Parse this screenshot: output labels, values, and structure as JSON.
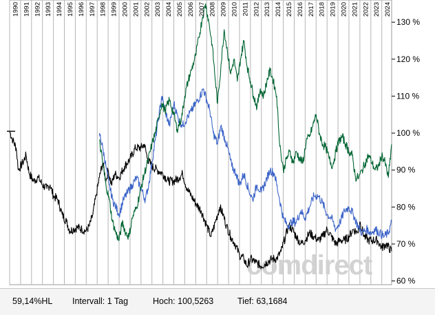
{
  "chart_data": {
    "type": "line",
    "x_label_years": [
      "1990",
      "1991",
      "1992",
      "1993",
      "1994",
      "1995",
      "1996",
      "1997",
      "1998",
      "1999",
      "2000",
      "2001",
      "2002",
      "2003",
      "2004",
      "2005",
      "2006",
      "2007",
      "2008",
      "2009",
      "2010",
      "2011",
      "2012",
      "2013",
      "2014",
      "2015",
      "2016",
      "2017",
      "2018",
      "2019",
      "2020",
      "2021",
      "2022",
      "2023",
      "2024"
    ],
    "y_ticks": [
      "60 %",
      "70 %",
      "80 %",
      "90 %",
      "100 %",
      "110 %",
      "120 %",
      "130 %"
    ],
    "ylim": [
      59,
      136
    ],
    "xlim": [
      1990.0,
      2024.9
    ],
    "axis_position": "right",
    "grid": true,
    "series": [
      {
        "color": "#000000",
        "points": [
          [
            1990.0,
            100.5
          ],
          [
            1990.3,
            98
          ],
          [
            1990.6,
            96
          ],
          [
            1990.8,
            90
          ],
          [
            1991.2,
            92
          ],
          [
            1991.5,
            94
          ],
          [
            1991.8,
            89
          ],
          [
            1992.2,
            87
          ],
          [
            1992.6,
            88
          ],
          [
            1993.0,
            86
          ],
          [
            1993.4,
            85
          ],
          [
            1993.7,
            86
          ],
          [
            1994.0,
            83
          ],
          [
            1994.4,
            82
          ],
          [
            1994.8,
            78
          ],
          [
            1995.2,
            76
          ],
          [
            1995.5,
            73.5
          ],
          [
            1995.8,
            74
          ],
          [
            1996.2,
            74.5
          ],
          [
            1996.6,
            74
          ],
          [
            1997.0,
            73.5
          ],
          [
            1997.3,
            75
          ],
          [
            1997.6,
            78
          ],
          [
            1997.9,
            83
          ],
          [
            1998.2,
            88
          ],
          [
            1998.5,
            92
          ],
          [
            1998.8,
            87
          ],
          [
            1999.0,
            90
          ],
          [
            1999.3,
            86
          ],
          [
            1999.6,
            89
          ],
          [
            2000.0,
            88
          ],
          [
            2000.5,
            91
          ],
          [
            2001.0,
            93
          ],
          [
            2001.5,
            96
          ],
          [
            2002.0,
            96
          ],
          [
            2002.3,
            97
          ],
          [
            2002.6,
            93
          ],
          [
            2003.0,
            91
          ],
          [
            2003.5,
            90
          ],
          [
            2004.0,
            89
          ],
          [
            2004.5,
            87
          ],
          [
            2005.0,
            87
          ],
          [
            2005.5,
            88
          ],
          [
            2005.8,
            89
          ],
          [
            2006.2,
            85
          ],
          [
            2006.6,
            83
          ],
          [
            2007.0,
            81
          ],
          [
            2007.5,
            79
          ],
          [
            2008.0,
            75
          ],
          [
            2008.4,
            72
          ],
          [
            2008.8,
            76
          ],
          [
            2009.2,
            80
          ],
          [
            2009.5,
            78
          ],
          [
            2009.8,
            75
          ],
          [
            2010.2,
            72
          ],
          [
            2010.6,
            70
          ],
          [
            2011.0,
            67
          ],
          [
            2011.4,
            66
          ],
          [
            2011.7,
            64
          ],
          [
            2012.0,
            66
          ],
          [
            2012.5,
            65
          ],
          [
            2013.0,
            64
          ],
          [
            2013.5,
            65
          ],
          [
            2014.0,
            66
          ],
          [
            2014.4,
            66
          ],
          [
            2014.8,
            68
          ],
          [
            2015.2,
            72
          ],
          [
            2015.5,
            75
          ],
          [
            2015.8,
            74
          ],
          [
            2016.2,
            72
          ],
          [
            2016.6,
            70
          ],
          [
            2017.0,
            71
          ],
          [
            2017.4,
            73
          ],
          [
            2017.8,
            72
          ],
          [
            2018.2,
            71
          ],
          [
            2018.6,
            72
          ],
          [
            2019.0,
            74
          ],
          [
            2019.4,
            72
          ],
          [
            2019.8,
            70
          ],
          [
            2020.2,
            71
          ],
          [
            2020.6,
            71
          ],
          [
            2021.0,
            72
          ],
          [
            2021.4,
            74
          ],
          [
            2021.8,
            73
          ],
          [
            2022.0,
            76
          ],
          [
            2022.4,
            72
          ],
          [
            2022.8,
            71
          ],
          [
            2023.2,
            71
          ],
          [
            2023.6,
            71
          ],
          [
            2024.0,
            69
          ],
          [
            2024.4,
            70
          ],
          [
            2024.9,
            68
          ]
        ]
      },
      {
        "color": "#3c64c8",
        "points": [
          [
            1998.2,
            100
          ],
          [
            1998.5,
            96
          ],
          [
            1998.8,
            91
          ],
          [
            1999.1,
            86
          ],
          [
            1999.4,
            82
          ],
          [
            1999.7,
            80
          ],
          [
            2000.0,
            78
          ],
          [
            2000.4,
            82
          ],
          [
            2000.8,
            84
          ],
          [
            2001.2,
            86
          ],
          [
            2001.6,
            88
          ],
          [
            2002.0,
            85
          ],
          [
            2002.4,
            82
          ],
          [
            2002.7,
            86
          ],
          [
            2003.0,
            92
          ],
          [
            2003.3,
            98
          ],
          [
            2003.6,
            104
          ],
          [
            2003.9,
            110
          ],
          [
            2004.2,
            106
          ],
          [
            2004.6,
            102
          ],
          [
            2005.0,
            108
          ],
          [
            2005.4,
            104
          ],
          [
            2005.8,
            102
          ],
          [
            2006.2,
            104
          ],
          [
            2006.6,
            106
          ],
          [
            2007.0,
            108
          ],
          [
            2007.4,
            110
          ],
          [
            2007.7,
            112
          ],
          [
            2008.0,
            109
          ],
          [
            2008.3,
            106
          ],
          [
            2008.6,
            100
          ],
          [
            2009.0,
            97
          ],
          [
            2009.3,
            102
          ],
          [
            2009.7,
            98
          ],
          [
            2010.0,
            95
          ],
          [
            2010.3,
            91
          ],
          [
            2010.7,
            89
          ],
          [
            2011.0,
            86
          ],
          [
            2011.4,
            89
          ],
          [
            2011.8,
            85
          ],
          [
            2012.2,
            82
          ],
          [
            2012.6,
            86
          ],
          [
            2013.0,
            84
          ],
          [
            2013.4,
            87
          ],
          [
            2013.8,
            90
          ],
          [
            2014.2,
            89
          ],
          [
            2014.6,
            83
          ],
          [
            2015.0,
            77
          ],
          [
            2015.4,
            75
          ],
          [
            2015.8,
            76
          ],
          [
            2016.2,
            76
          ],
          [
            2016.6,
            79
          ],
          [
            2017.0,
            77
          ],
          [
            2017.4,
            80
          ],
          [
            2017.8,
            83
          ],
          [
            2018.2,
            83
          ],
          [
            2018.6,
            81
          ],
          [
            2019.0,
            78
          ],
          [
            2019.4,
            77
          ],
          [
            2019.8,
            74
          ],
          [
            2020.2,
            76
          ],
          [
            2020.6,
            79
          ],
          [
            2021.0,
            80
          ],
          [
            2021.4,
            78
          ],
          [
            2021.8,
            75
          ],
          [
            2022.2,
            73
          ],
          [
            2022.6,
            74
          ],
          [
            2023.0,
            73
          ],
          [
            2023.4,
            74
          ],
          [
            2023.8,
            73
          ],
          [
            2024.2,
            72
          ],
          [
            2024.6,
            73
          ],
          [
            2024.9,
            76
          ]
        ]
      },
      {
        "color": "#006432",
        "points": [
          [
            1998.2,
            98
          ],
          [
            1998.5,
            92
          ],
          [
            1998.8,
            86
          ],
          [
            1999.1,
            82
          ],
          [
            1999.4,
            76
          ],
          [
            1999.7,
            73
          ],
          [
            2000.0,
            71
          ],
          [
            2000.3,
            76
          ],
          [
            2000.6,
            73
          ],
          [
            2000.9,
            72
          ],
          [
            2001.2,
            77
          ],
          [
            2001.6,
            80
          ],
          [
            2002.0,
            85
          ],
          [
            2002.3,
            89
          ],
          [
            2002.6,
            92
          ],
          [
            2003.0,
            97
          ],
          [
            2003.3,
            100
          ],
          [
            2003.6,
            104
          ],
          [
            2003.9,
            108
          ],
          [
            2004.2,
            106
          ],
          [
            2004.6,
            109
          ],
          [
            2005.0,
            105
          ],
          [
            2005.3,
            101
          ],
          [
            2005.7,
            104
          ],
          [
            2006.0,
            110
          ],
          [
            2006.3,
            114
          ],
          [
            2006.6,
            117
          ],
          [
            2007.0,
            121
          ],
          [
            2007.3,
            126
          ],
          [
            2007.6,
            131
          ],
          [
            2007.9,
            135
          ],
          [
            2008.2,
            130
          ],
          [
            2008.5,
            124
          ],
          [
            2008.8,
            114
          ],
          [
            2009.0,
            108
          ],
          [
            2009.3,
            118
          ],
          [
            2009.6,
            128
          ],
          [
            2009.9,
            122
          ],
          [
            2010.2,
            116
          ],
          [
            2010.5,
            120
          ],
          [
            2010.8,
            114
          ],
          [
            2011.1,
            120
          ],
          [
            2011.4,
            125
          ],
          [
            2011.7,
            118
          ],
          [
            2012.0,
            114
          ],
          [
            2012.3,
            110
          ],
          [
            2012.6,
            107
          ],
          [
            2012.9,
            112
          ],
          [
            2013.2,
            110
          ],
          [
            2013.5,
            114
          ],
          [
            2013.8,
            117
          ],
          [
            2014.1,
            114
          ],
          [
            2014.4,
            110
          ],
          [
            2014.6,
            100
          ],
          [
            2014.8,
            94
          ],
          [
            2015.0,
            90
          ],
          [
            2015.3,
            93
          ],
          [
            2015.6,
            95
          ],
          [
            2015.9,
            92
          ],
          [
            2016.2,
            95
          ],
          [
            2016.5,
            93
          ],
          [
            2016.8,
            92
          ],
          [
            2017.1,
            98
          ],
          [
            2017.4,
            99
          ],
          [
            2017.7,
            102
          ],
          [
            2018.0,
            105
          ],
          [
            2018.3,
            100
          ],
          [
            2018.6,
            97
          ],
          [
            2018.9,
            96
          ],
          [
            2019.2,
            93
          ],
          [
            2019.5,
            91
          ],
          [
            2019.8,
            95
          ],
          [
            2020.1,
            98
          ],
          [
            2020.4,
            99
          ],
          [
            2020.7,
            97
          ],
          [
            2021.0,
            95
          ],
          [
            2021.3,
            94
          ],
          [
            2021.6,
            88
          ],
          [
            2021.9,
            88
          ],
          [
            2022.2,
            90
          ],
          [
            2022.5,
            92
          ],
          [
            2022.8,
            94
          ],
          [
            2023.1,
            92
          ],
          [
            2023.4,
            90
          ],
          [
            2023.7,
            91
          ],
          [
            2024.0,
            94
          ],
          [
            2024.3,
            92
          ],
          [
            2024.6,
            88
          ],
          [
            2024.9,
            97
          ]
        ]
      }
    ],
    "watermark": "comdirect"
  },
  "footer": {
    "last_value": "59,14%HL",
    "interval": "Intervall: 1 Tag",
    "high": "Hoch: 100,5263",
    "low": "Tief: 63,1684"
  }
}
